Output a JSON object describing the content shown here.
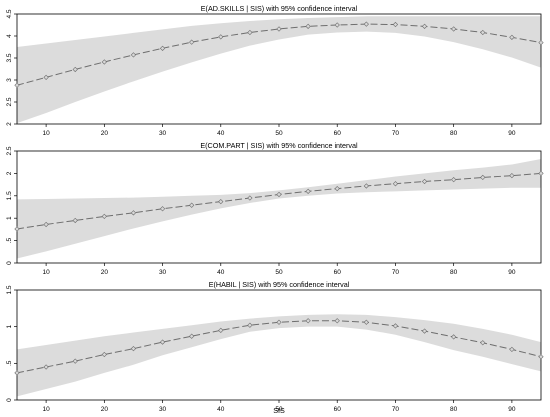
{
  "figure": {
    "xlabel": "SIS",
    "colors": {
      "band": "#dcdcdc",
      "line": "#6e6e6e",
      "marker": "#6e6e6e",
      "frame": "#000000",
      "text": "#000000"
    }
  },
  "chart_data": [
    {
      "type": "line",
      "title": "E(AD.SKILLS | SIS) with 95% confidence interval",
      "xlabel": "",
      "ylabel": "",
      "xlim": [
        5,
        95
      ],
      "ylim": [
        2,
        4.5
      ],
      "xticks": [
        10,
        20,
        30,
        40,
        50,
        60,
        70,
        80,
        90
      ],
      "yticks": [
        2,
        2.5,
        3,
        3.5,
        4,
        4.5
      ],
      "ytick_labels": [
        "2",
        "2.5",
        "3",
        "3.5",
        "4",
        "4.5"
      ],
      "grid": false,
      "x": [
        5,
        10,
        15,
        20,
        25,
        30,
        35,
        40,
        45,
        50,
        55,
        60,
        65,
        70,
        75,
        80,
        85,
        90,
        95
      ],
      "y": [
        2.88,
        3.06,
        3.24,
        3.41,
        3.57,
        3.72,
        3.86,
        3.98,
        4.08,
        4.16,
        4.22,
        4.25,
        4.27,
        4.26,
        4.22,
        4.16,
        4.08,
        3.97,
        3.85
      ],
      "upper": [
        3.75,
        3.83,
        3.91,
        3.99,
        4.07,
        4.15,
        4.23,
        4.29,
        4.34,
        4.38,
        4.41,
        4.43,
        4.45,
        4.45,
        4.45,
        4.45,
        4.45,
        4.45,
        4.45
      ],
      "lower": [
        2.02,
        2.25,
        2.5,
        2.74,
        2.97,
        3.19,
        3.4,
        3.6,
        3.78,
        3.92,
        4.03,
        4.08,
        4.1,
        4.07,
        3.99,
        3.86,
        3.7,
        3.51,
        3.28
      ]
    },
    {
      "type": "line",
      "title": "E(COM.PART | SIS) with 95% confidence interval",
      "xlabel": "",
      "ylabel": "",
      "xlim": [
        5,
        95
      ],
      "ylim": [
        0,
        2.5
      ],
      "xticks": [
        10,
        20,
        30,
        40,
        50,
        60,
        70,
        80,
        90
      ],
      "yticks": [
        0,
        0.5,
        1,
        1.5,
        2,
        2.5
      ],
      "ytick_labels": [
        "0",
        ".5",
        "1",
        "1.5",
        "2",
        "2.5"
      ],
      "grid": false,
      "x": [
        5,
        10,
        15,
        20,
        25,
        30,
        35,
        40,
        45,
        50,
        55,
        60,
        65,
        70,
        75,
        80,
        85,
        90,
        95
      ],
      "y": [
        0.76,
        0.86,
        0.95,
        1.04,
        1.12,
        1.21,
        1.29,
        1.37,
        1.45,
        1.53,
        1.6,
        1.66,
        1.72,
        1.77,
        1.82,
        1.86,
        1.91,
        1.95,
        2.0
      ],
      "upper": [
        1.42,
        1.43,
        1.44,
        1.45,
        1.46,
        1.48,
        1.5,
        1.52,
        1.56,
        1.62,
        1.69,
        1.77,
        1.85,
        1.93,
        2.0,
        2.07,
        2.13,
        2.2,
        2.32
      ],
      "lower": [
        0.1,
        0.26,
        0.43,
        0.6,
        0.77,
        0.93,
        1.08,
        1.22,
        1.34,
        1.44,
        1.5,
        1.55,
        1.58,
        1.6,
        1.62,
        1.64,
        1.66,
        1.68,
        1.68
      ]
    },
    {
      "type": "line",
      "title": "E(HABIL | SIS) with 95% confidence interval",
      "xlabel": "SIS",
      "ylabel": "",
      "xlim": [
        5,
        95
      ],
      "ylim": [
        0,
        1.5
      ],
      "xticks": [
        10,
        20,
        30,
        40,
        50,
        60,
        70,
        80,
        90
      ],
      "yticks": [
        0,
        0.5,
        1,
        1.5
      ],
      "ytick_labels": [
        "0",
        ".5",
        "1",
        "1.5"
      ],
      "grid": false,
      "x": [
        5,
        10,
        15,
        20,
        25,
        30,
        35,
        40,
        45,
        50,
        55,
        60,
        65,
        70,
        75,
        80,
        85,
        90,
        95
      ],
      "y": [
        0.37,
        0.45,
        0.53,
        0.62,
        0.7,
        0.79,
        0.87,
        0.95,
        1.02,
        1.06,
        1.08,
        1.08,
        1.06,
        1.01,
        0.94,
        0.86,
        0.78,
        0.69,
        0.59
      ],
      "upper": [
        0.69,
        0.75,
        0.81,
        0.87,
        0.92,
        0.97,
        1.02,
        1.07,
        1.11,
        1.14,
        1.16,
        1.17,
        1.16,
        1.13,
        1.09,
        1.04,
        0.97,
        0.89,
        0.79
      ],
      "lower": [
        0.05,
        0.15,
        0.25,
        0.37,
        0.48,
        0.61,
        0.72,
        0.83,
        0.93,
        0.98,
        1.0,
        1.0,
        0.96,
        0.89,
        0.79,
        0.68,
        0.59,
        0.49,
        0.39
      ]
    }
  ]
}
